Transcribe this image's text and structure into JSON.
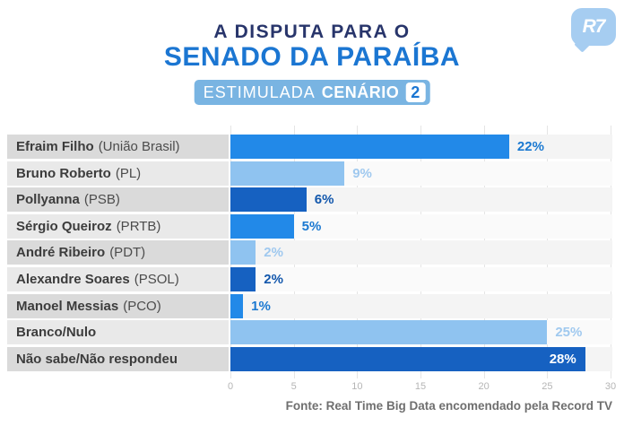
{
  "header": {
    "title_line1": "A DISPUTA PARA O",
    "title_line2": "SENADO DA PARAÍBA",
    "badge": {
      "label_regular": "ESTIMULADA",
      "label_bold": "CENÁRIO",
      "number": "2"
    },
    "logo_text": "R7"
  },
  "chart_data": {
    "type": "bar",
    "orientation": "horizontal",
    "title": "A DISPUTA PARA O SENADO DA PARAÍBA — ESTIMULADA CENÁRIO 2",
    "categories": [
      "Efraim Filho (União Brasil)",
      "Bruno Roberto (PL)",
      "Pollyanna (PSB)",
      "Sérgio Queiroz (PRTB)",
      "André Ribeiro (PDT)",
      "Alexandre Soares (PSOL)",
      "Manoel Messias (PCO)",
      "Branco/Nulo",
      "Não sabe/Não respondeu"
    ],
    "values": [
      22,
      9,
      6,
      5,
      2,
      2,
      1,
      25,
      28
    ],
    "xlim": [
      0,
      30
    ],
    "x_ticks": [
      "0",
      "5",
      "10",
      "15",
      "20",
      "25",
      "30"
    ],
    "grid": "vertical",
    "legend": "none",
    "rows": [
      {
        "name": "Efraim Filho",
        "party": "(União Brasil)",
        "value": 22,
        "value_label": "22%",
        "shade": "medium",
        "label_inside": false
      },
      {
        "name": "Bruno Roberto",
        "party": "(PL)",
        "value": 9,
        "value_label": "9%",
        "shade": "light",
        "label_inside": false
      },
      {
        "name": "Pollyanna",
        "party": "(PSB)",
        "value": 6,
        "value_label": "6%",
        "shade": "dark",
        "label_inside": false
      },
      {
        "name": "Sérgio Queiroz",
        "party": "(PRTB)",
        "value": 5,
        "value_label": "5%",
        "shade": "medium",
        "label_inside": false
      },
      {
        "name": "André Ribeiro",
        "party": "(PDT)",
        "value": 2,
        "value_label": "2%",
        "shade": "light",
        "label_inside": false
      },
      {
        "name": "Alexandre Soares",
        "party": "(PSOL)",
        "value": 2,
        "value_label": "2%",
        "shade": "dark",
        "label_inside": false
      },
      {
        "name": "Manoel Messias",
        "party": "(PCO)",
        "value": 1,
        "value_label": "1%",
        "shade": "medium",
        "label_inside": false
      },
      {
        "name": "Branco/Nulo",
        "party": "",
        "value": 25,
        "value_label": "25%",
        "shade": "light",
        "label_inside": false
      },
      {
        "name": "Não sabe/Não respondeu",
        "party": "",
        "value": 28,
        "value_label": "28%",
        "shade": "dark",
        "label_inside": true
      }
    ],
    "colors": {
      "medium": "#2289e8",
      "light": "#8fc3f0",
      "dark": "#1661c1",
      "medium_label": "#1b79d1",
      "light_label": "#a0c9ef",
      "dark_label": "#1257ac",
      "inside_label": "#ffffff",
      "row_bg_odd": "#dadada",
      "row_bg_even": "#e9e9e9",
      "band_bg_odd": "#f4f4f4",
      "band_bg_even": "#fafafa",
      "accent_blue": "#1b76d2",
      "navy": "#28356b",
      "badge_bg": "#79b4e2"
    }
  },
  "footer": {
    "source": "Fonte: Real Time Big Data encomendado pela Record TV"
  }
}
